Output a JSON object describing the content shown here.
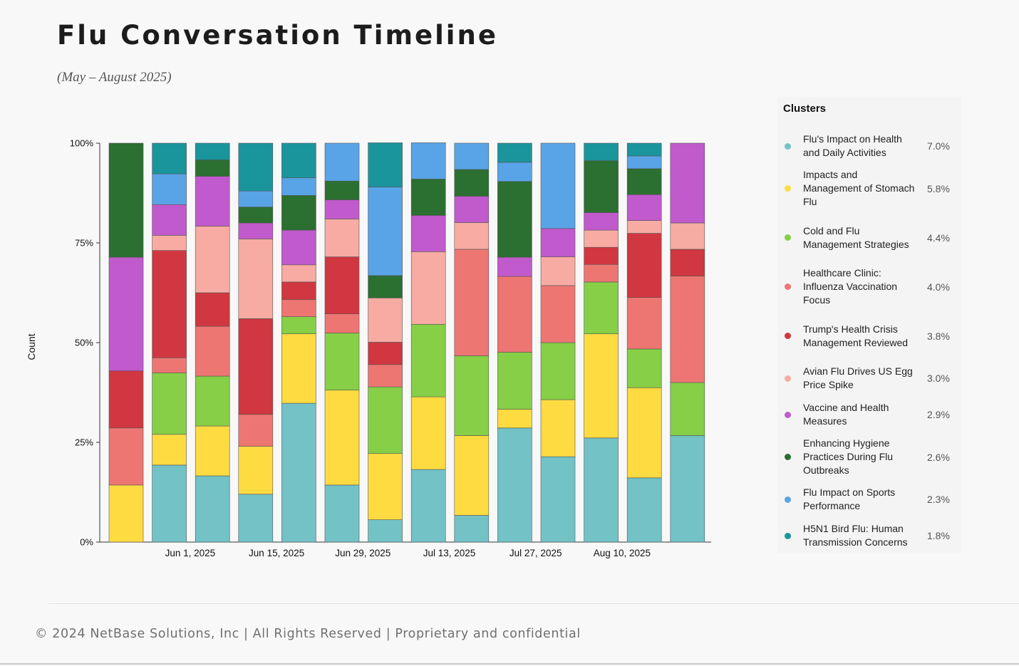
{
  "page": {
    "title": "Flu Conversation Timeline",
    "subtitle": "(May – August 2025)",
    "footer": "© 2024 NetBase Solutions, Inc | All Rights Reserved | Proprietary and confidential"
  },
  "legend": {
    "title": "Clusters",
    "items": [
      {
        "label": "Flu's Impact on Health and Daily Activities",
        "pct": "7.0%",
        "color": "#72c2c6"
      },
      {
        "label": "Impacts and Management of Stomach Flu",
        "pct": "5.8%",
        "color": "#fedb41"
      },
      {
        "label": "Cold and Flu Management Strategies",
        "pct": "4.4%",
        "color": "#86cf46"
      },
      {
        "label": "Healthcare Clinic: Influenza Vaccination Focus",
        "pct": "4.0%",
        "color": "#ee7672"
      },
      {
        "label": "Trump's Health Crisis Management Reviewed",
        "pct": "3.8%",
        "color": "#d13740"
      },
      {
        "label": "Avian Flu Drives US Egg Price Spike",
        "pct": "3.0%",
        "color": "#f7aba2"
      },
      {
        "label": "Vaccine and Health Measures",
        "pct": "2.9%",
        "color": "#c15acc"
      },
      {
        "label": "Enhancing Hygiene Practices During Flu Outbreaks",
        "pct": "2.6%",
        "color": "#2b6f31"
      },
      {
        "label": "Flu Impact on Sports Performance",
        "pct": "2.3%",
        "color": "#59a4e6"
      },
      {
        "label": "H5N1 Bird Flu: Human Transmission Concerns",
        "pct": "1.8%",
        "color": "#1a959c"
      }
    ]
  },
  "chart_data": {
    "type": "bar",
    "stacked": true,
    "normalized": true,
    "ylabel": "Count",
    "xlabel": "",
    "ylim": [
      0,
      100
    ],
    "yticks": [
      "0%",
      "25%",
      "50%",
      "75%",
      "100%"
    ],
    "xtick_labels": [
      {
        "label": "Jun 1, 2025",
        "after_bar": 2
      },
      {
        "label": "Jun 15, 2025",
        "after_bar": 4
      },
      {
        "label": "Jun 29, 2025",
        "after_bar": 6
      },
      {
        "label": "Jul 13, 2025",
        "after_bar": 8
      },
      {
        "label": "Jul 27, 2025",
        "after_bar": 10
      },
      {
        "label": "Aug 10, 2025",
        "after_bar": 12
      }
    ],
    "bar_count": 14,
    "series": [
      {
        "name": "Flu's Impact on Health and Daily Activities",
        "color": "#72c2c6",
        "values": [
          0,
          19.3,
          16.6,
          12,
          34.8,
          14.3,
          5.6,
          18.2,
          6.7,
          28.6,
          21.4,
          26.1,
          16.1,
          26.7
        ]
      },
      {
        "name": "Impacts and Management of Stomach Flu",
        "color": "#fedb41",
        "values": [
          14.3,
          7.7,
          12.5,
          12,
          17.4,
          23.8,
          16.6,
          18.2,
          20,
          4.7,
          14.3,
          26.1,
          22.6,
          0
        ]
      },
      {
        "name": "Cold and Flu Management Strategies",
        "color": "#86cf46",
        "values": [
          0,
          15.4,
          12.5,
          0,
          4.3,
          14.3,
          16.7,
          18.2,
          20,
          14.3,
          14.3,
          13,
          9.7,
          13.3
        ]
      },
      {
        "name": "Healthcare Clinic: Influenza Vaccination Focus",
        "color": "#ee7672",
        "values": [
          14.3,
          3.8,
          12.5,
          8,
          4.3,
          4.8,
          5.6,
          0,
          26.7,
          19,
          14.3,
          4.4,
          12.9,
          26.7
        ]
      },
      {
        "name": "Trump's Health Crisis Management Reviewed",
        "color": "#d13740",
        "values": [
          14.3,
          26.9,
          8.4,
          24,
          4.4,
          14.3,
          5.6,
          0,
          0,
          0,
          0,
          4.3,
          16.1,
          6.7
        ]
      },
      {
        "name": "Avian Flu Drives US Egg Price Spike",
        "color": "#f7aba2",
        "values": [
          0,
          3.8,
          16.7,
          20,
          4.3,
          9.5,
          11.1,
          18.2,
          6.7,
          0,
          7.2,
          4.3,
          3.2,
          6.6
        ]
      },
      {
        "name": "Vaccine and Health Measures",
        "color": "#c15acc",
        "values": [
          28.5,
          7.7,
          12.5,
          4,
          8.7,
          4.8,
          0,
          9.1,
          6.6,
          4.8,
          7.1,
          4.4,
          6.5,
          20
        ]
      },
      {
        "name": "Enhancing Hygiene Practices During Flu Outbreaks",
        "color": "#2b6f31",
        "values": [
          28.6,
          0,
          4.1,
          4,
          8.7,
          4.7,
          5.6,
          9.1,
          6.7,
          19,
          0,
          13,
          6.5,
          0
        ]
      },
      {
        "name": "Flu Impact on Sports Performance",
        "color": "#59a4e6",
        "values": [
          0,
          7.7,
          0,
          4,
          4.4,
          9.5,
          22.2,
          9.1,
          6.6,
          4.8,
          21.4,
          0,
          3.2,
          0
        ]
      },
      {
        "name": "H5N1 Bird Flu: Human Transmission Concerns",
        "color": "#1a959c",
        "values": [
          0,
          7.7,
          4.2,
          12,
          8.7,
          0,
          11.1,
          0,
          0,
          4.8,
          0,
          4.4,
          3.2,
          0
        ]
      }
    ]
  }
}
